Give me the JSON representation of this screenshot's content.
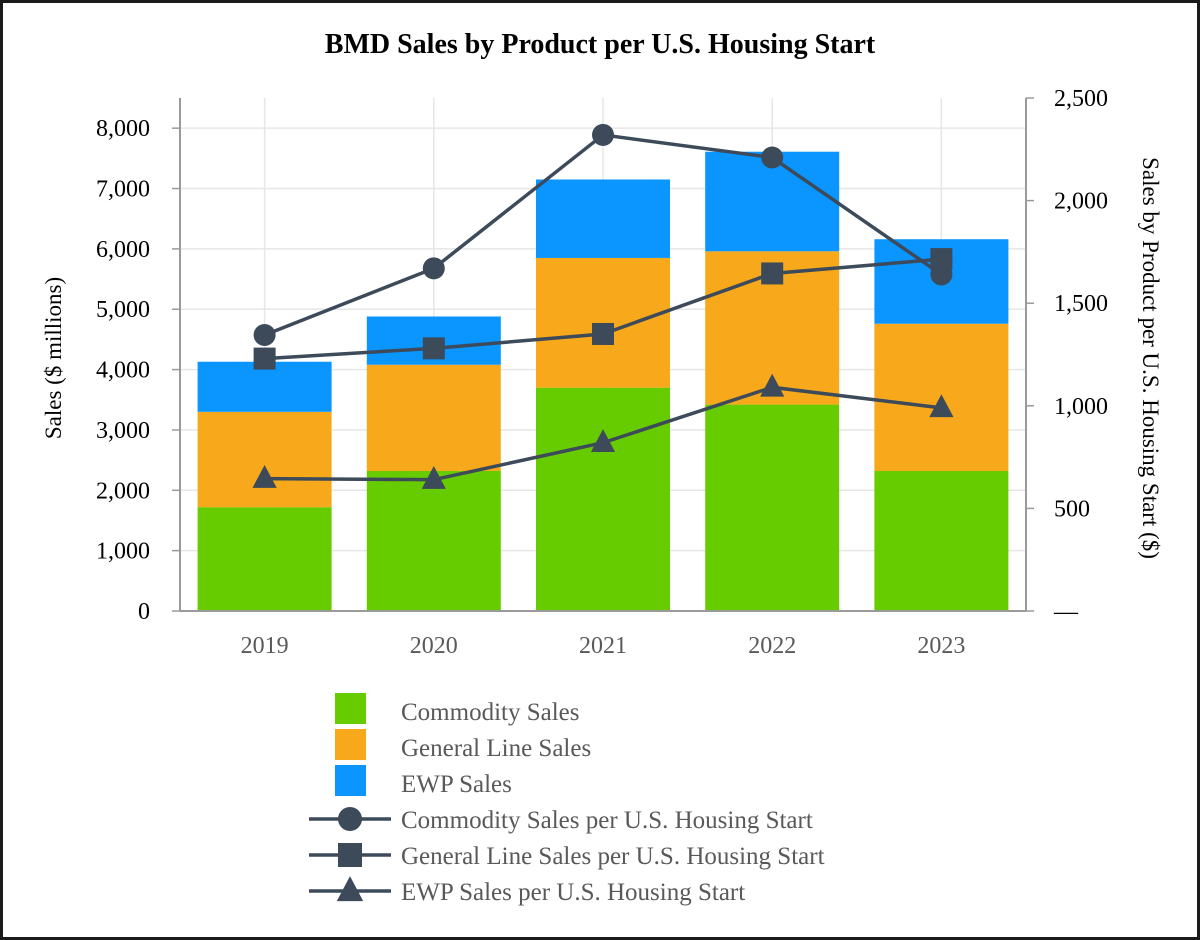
{
  "chart_data": {
    "type": "bar",
    "title": "BMD Sales by Product per U.S. Housing Start",
    "categories": [
      "2019",
      "2020",
      "2021",
      "2022",
      "2023"
    ],
    "ylabel": "Sales ($ millions)",
    "y2label": "Sales by Product per U.S. Housing Start ($)",
    "ylim": [
      0,
      8500
    ],
    "y2lim": [
      0,
      2500
    ],
    "yticks": [
      0,
      1000,
      2000,
      3000,
      4000,
      5000,
      6000,
      7000,
      8000
    ],
    "ytick_labels": [
      "0",
      "1,000",
      "2,000",
      "3,000",
      "4,000",
      "5,000",
      "6,000",
      "7,000",
      "8,000"
    ],
    "y2ticks": [
      0,
      500,
      1000,
      1500,
      2000,
      2500
    ],
    "y2tick_labels": [
      "—",
      "500",
      "1,000",
      "1,500",
      "2,000",
      "2,500"
    ],
    "grid": true,
    "legend_position": "bottom",
    "series": [
      {
        "name": "Commodity Sales",
        "kind": "bar",
        "stack": "sales",
        "axis": "left",
        "color": "#66cc00",
        "values": [
          1720,
          2320,
          3700,
          3420,
          2320
        ]
      },
      {
        "name": "General Line Sales",
        "kind": "bar",
        "stack": "sales",
        "axis": "left",
        "color": "#f7a81b",
        "values": [
          1580,
          1760,
          2150,
          2540,
          2440
        ]
      },
      {
        "name": "EWP Sales",
        "kind": "bar",
        "stack": "sales",
        "axis": "left",
        "color": "#0a95ff",
        "values": [
          830,
          800,
          1300,
          1650,
          1400
        ]
      },
      {
        "name": "Commodity Sales per U.S. Housing Start",
        "kind": "line",
        "axis": "right",
        "marker": "circle",
        "color": "#3c4a5a",
        "values": [
          1345,
          1670,
          2320,
          2210,
          1640
        ]
      },
      {
        "name": "General Line Sales per U.S. Housing Start",
        "kind": "line",
        "axis": "right",
        "marker": "square",
        "color": "#3c4a5a",
        "values": [
          1230,
          1280,
          1350,
          1645,
          1715
        ]
      },
      {
        "name": "EWP Sales per U.S. Housing Start",
        "kind": "line",
        "axis": "right",
        "marker": "triangle",
        "color": "#3c4a5a",
        "values": [
          645,
          640,
          820,
          1090,
          990
        ]
      }
    ]
  },
  "colors": {
    "grid": "#e6e6e6",
    "axis": "#9a9a9a",
    "line": "#3c4a5a"
  }
}
